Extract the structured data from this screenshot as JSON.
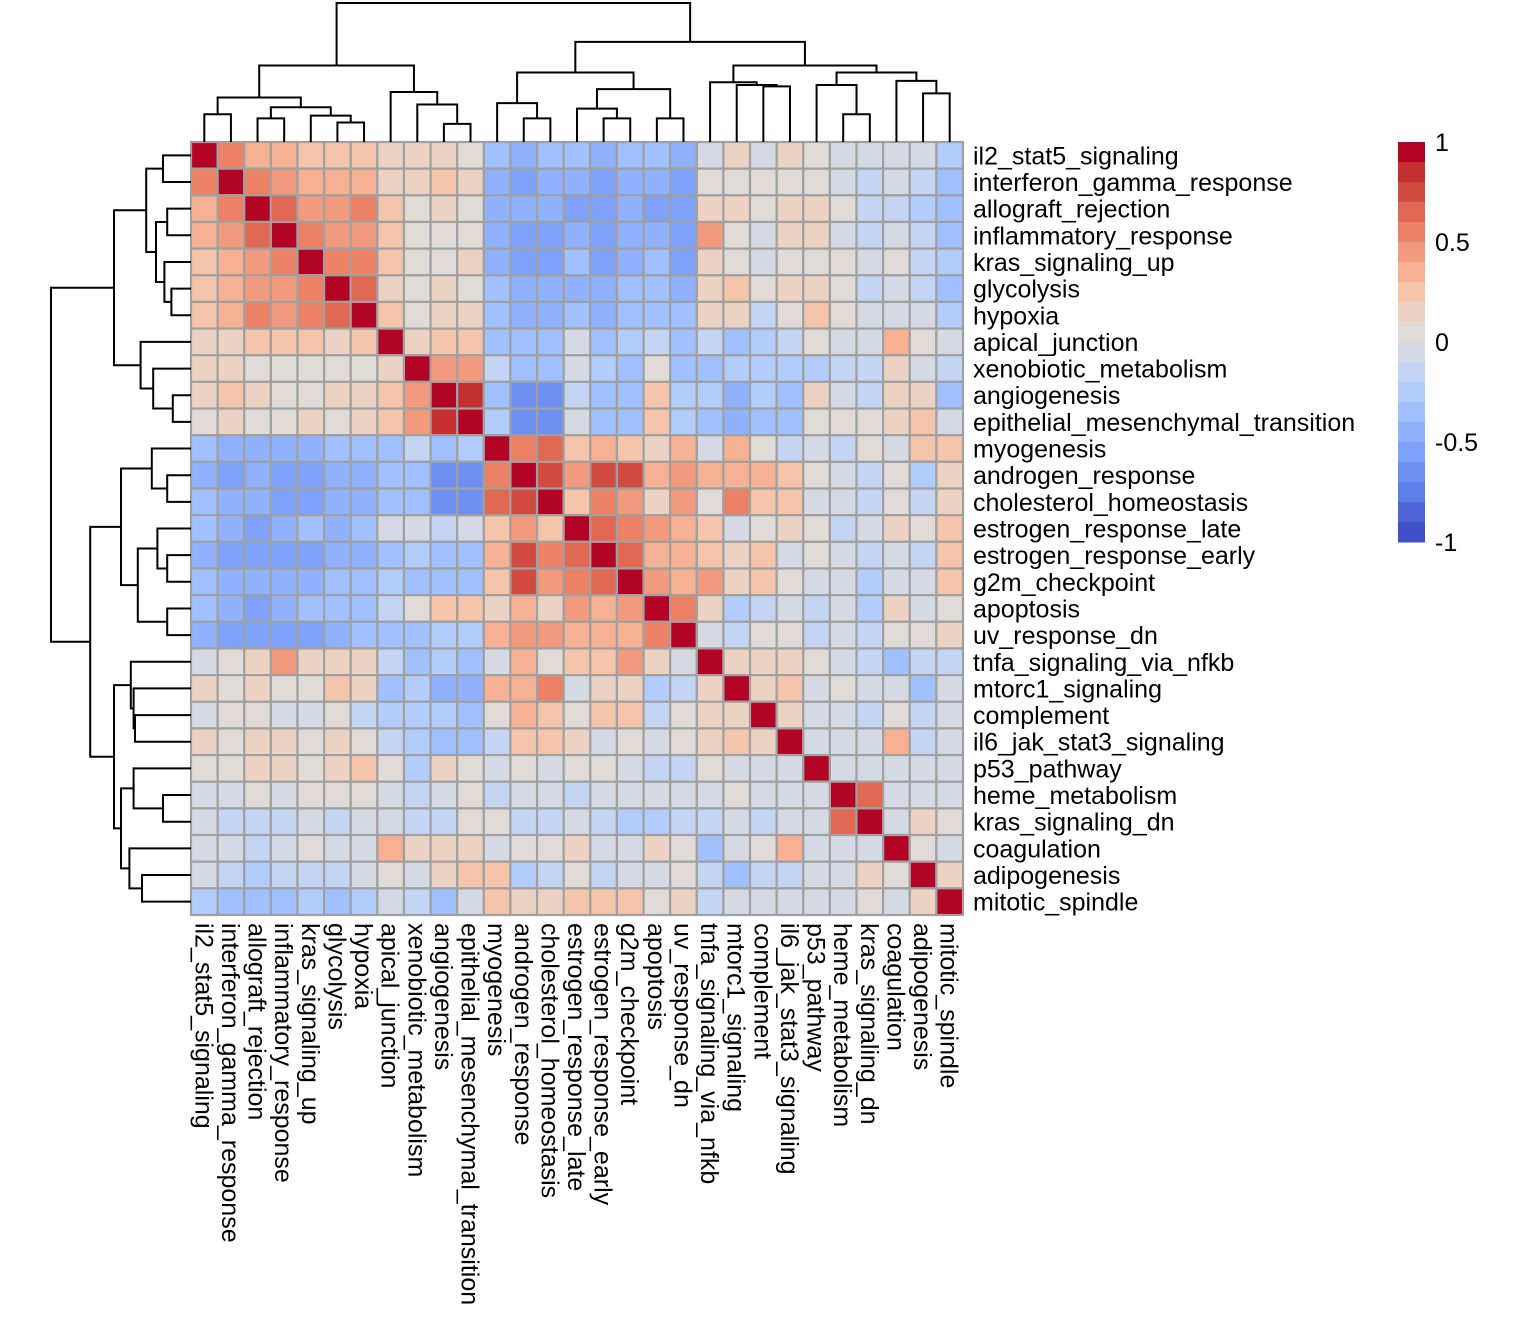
{
  "chart_data": {
    "type": "heatmap",
    "title": "",
    "labels": [
      "il2_stat5_signaling",
      "interferon_gamma_response",
      "allograft_rejection",
      "inflammatory_response",
      "kras_signaling_up",
      "glycolysis",
      "hypoxia",
      "apical_junction",
      "xenobiotic_metabolism",
      "angiogenesis",
      "epithelial_mesenchymal_transition",
      "myogenesis",
      "androgen_response",
      "cholesterol_homeostasis",
      "estrogen_response_late",
      "estrogen_response_early",
      "g2m_checkpoint",
      "apoptosis",
      "uv_response_dn",
      "tnfa_signaling_via_nfkb",
      "mtorc1_signaling",
      "complement",
      "il6_jak_stat3_signaling",
      "p53_pathway",
      "heme_metabolism",
      "kras_signaling_dn",
      "coagulation",
      "adipogenesis",
      "mitotic_spindle"
    ],
    "matrix": [
      [
        1,
        0.55,
        0.35,
        0.35,
        0.25,
        0.25,
        0.25,
        0.12,
        0.12,
        0.15,
        0.05,
        -0.3,
        -0.45,
        -0.35,
        -0.35,
        -0.45,
        -0.35,
        -0.35,
        -0.45,
        0,
        0.15,
        0,
        0.12,
        0.05,
        0,
        0,
        0,
        -0.05,
        -0.2
      ],
      [
        0.55,
        1,
        0.55,
        0.45,
        0.35,
        0.35,
        0.35,
        0.12,
        0.12,
        0.25,
        0.12,
        -0.4,
        -0.5,
        -0.45,
        -0.45,
        -0.5,
        -0.4,
        -0.45,
        -0.55,
        0.05,
        0.1,
        0.05,
        0.1,
        0.05,
        0,
        -0.15,
        0,
        -0.15,
        -0.3
      ],
      [
        0.35,
        0.55,
        1,
        0.65,
        0.45,
        0.45,
        0.55,
        0.25,
        0.05,
        0.12,
        0.05,
        -0.4,
        -0.45,
        -0.45,
        -0.5,
        -0.5,
        -0.45,
        -0.5,
        -0.5,
        0.12,
        0.15,
        0.05,
        0.15,
        0.15,
        0.05,
        -0.15,
        -0.1,
        -0.2,
        -0.3
      ],
      [
        0.35,
        0.45,
        0.65,
        1,
        0.55,
        0.45,
        0.45,
        0.25,
        0.1,
        0.1,
        0.05,
        -0.4,
        -0.5,
        -0.5,
        -0.4,
        -0.5,
        -0.4,
        -0.4,
        -0.5,
        0.45,
        0.05,
        0,
        0.15,
        0.15,
        0,
        -0.15,
        0,
        -0.15,
        -0.3
      ],
      [
        0.25,
        0.35,
        0.45,
        0.55,
        1,
        0.55,
        0.55,
        0.25,
        0.05,
        0.1,
        0.12,
        -0.4,
        -0.5,
        -0.5,
        -0.3,
        -0.5,
        -0.4,
        -0.35,
        -0.5,
        0.12,
        0.05,
        0,
        0.05,
        0.05,
        0.1,
        0,
        0.05,
        -0.1,
        -0.25
      ],
      [
        0.25,
        0.35,
        0.45,
        0.45,
        0.55,
        1,
        0.65,
        0.12,
        0.05,
        0.12,
        0.05,
        -0.35,
        -0.4,
        -0.4,
        -0.4,
        -0.4,
        -0.3,
        -0.35,
        -0.45,
        0.12,
        0.3,
        0.05,
        0.12,
        0.15,
        0.05,
        -0.15,
        0,
        -0.15,
        -0.3
      ],
      [
        0.25,
        0.35,
        0.55,
        0.45,
        0.55,
        0.65,
        1,
        0.25,
        0.05,
        0.12,
        0.12,
        -0.3,
        -0.4,
        -0.4,
        -0.35,
        -0.4,
        -0.3,
        -0.3,
        -0.35,
        0.12,
        0.15,
        -0.1,
        0.05,
        0.25,
        0.05,
        0,
        0,
        0,
        -0.2
      ],
      [
        0.12,
        0.12,
        0.25,
        0.25,
        0.25,
        0.12,
        0.25,
        1,
        0.15,
        0.25,
        0.25,
        -0.3,
        -0.35,
        -0.35,
        0,
        -0.35,
        -0.25,
        -0.15,
        -0.3,
        -0.1,
        -0.3,
        -0.2,
        -0.1,
        0.05,
        0,
        0,
        0.35,
        0.05,
        0
      ],
      [
        0.12,
        0.12,
        0.05,
        0.1,
        0.05,
        0.05,
        0.05,
        0.15,
        1,
        0.45,
        0.45,
        -0.15,
        -0.35,
        -0.35,
        0,
        -0.25,
        -0.3,
        0.05,
        -0.3,
        -0.3,
        -0.25,
        -0.2,
        -0.2,
        -0.2,
        -0.1,
        -0.15,
        0.15,
        0,
        -0.15
      ],
      [
        0.15,
        0.25,
        0.12,
        0.1,
        0.1,
        0.12,
        0.12,
        0.25,
        0.45,
        1,
        0.85,
        -0.35,
        -0.6,
        -0.6,
        -0.15,
        -0.35,
        -0.3,
        0.25,
        -0.2,
        -0.25,
        -0.4,
        -0.25,
        -0.3,
        0.15,
        -0.05,
        -0.1,
        0.15,
        0.12,
        -0.3
      ],
      [
        0.05,
        0.12,
        0.05,
        0.05,
        0.12,
        0.05,
        0.12,
        0.25,
        0.45,
        0.85,
        1,
        -0.2,
        -0.6,
        -0.6,
        -0.05,
        -0.35,
        -0.35,
        0.25,
        -0.2,
        -0.3,
        -0.45,
        -0.3,
        -0.3,
        0.05,
        0.05,
        0.05,
        0.12,
        0.3,
        0
      ],
      [
        -0.3,
        -0.4,
        -0.4,
        -0.4,
        -0.4,
        -0.35,
        -0.3,
        -0.3,
        -0.15,
        -0.35,
        -0.2,
        1,
        0.55,
        0.65,
        0.25,
        0.35,
        0.25,
        0.12,
        0.35,
        -0.05,
        0.35,
        0.05,
        -0.1,
        0,
        -0.1,
        0.05,
        0,
        0.3,
        0.3
      ],
      [
        -0.45,
        -0.5,
        -0.45,
        -0.5,
        -0.5,
        -0.4,
        -0.4,
        -0.35,
        -0.35,
        -0.6,
        -0.6,
        0.55,
        1,
        0.75,
        0.45,
        0.75,
        0.75,
        0.35,
        0.45,
        0.35,
        0.35,
        0.35,
        0.25,
        0.05,
        0,
        -0.15,
        0.05,
        -0.2,
        0.15
      ],
      [
        -0.35,
        -0.45,
        -0.45,
        -0.5,
        -0.5,
        -0.4,
        -0.4,
        -0.35,
        -0.35,
        -0.6,
        -0.6,
        0.65,
        0.75,
        1,
        0.25,
        0.55,
        0.45,
        0.15,
        0.45,
        0.05,
        0.55,
        0.25,
        0.3,
        0,
        0,
        -0.15,
        0.05,
        -0.15,
        0.15
      ],
      [
        -0.35,
        -0.45,
        -0.5,
        -0.4,
        -0.3,
        -0.4,
        -0.35,
        0,
        0,
        -0.15,
        -0.05,
        0.25,
        0.45,
        0.25,
        1,
        0.65,
        0.55,
        0.45,
        0.35,
        0.25,
        0,
        0.05,
        0.15,
        0.05,
        -0.1,
        0,
        0.15,
        0.05,
        0.3
      ],
      [
        -0.45,
        -0.5,
        -0.5,
        -0.5,
        -0.5,
        -0.4,
        -0.4,
        -0.35,
        -0.25,
        -0.35,
        -0.35,
        0.35,
        0.75,
        0.55,
        0.65,
        1,
        0.65,
        0.35,
        0.35,
        0.25,
        0.15,
        0.25,
        0,
        0.05,
        0,
        -0.15,
        0,
        -0.1,
        0.3
      ],
      [
        -0.35,
        -0.4,
        -0.45,
        -0.4,
        -0.4,
        -0.3,
        -0.3,
        -0.25,
        -0.3,
        -0.3,
        -0.35,
        0.25,
        0.75,
        0.45,
        0.55,
        0.65,
        1,
        0.45,
        0.35,
        0.45,
        0.15,
        0.25,
        0.05,
        0,
        0,
        -0.25,
        -0.05,
        0,
        0.3
      ],
      [
        -0.35,
        -0.45,
        -0.5,
        -0.4,
        -0.35,
        -0.35,
        -0.3,
        -0.15,
        0.05,
        0.25,
        0.25,
        0.12,
        0.35,
        0.15,
        0.45,
        0.35,
        0.45,
        1,
        0.6,
        0.15,
        -0.2,
        -0.1,
        0,
        -0.1,
        0,
        -0.25,
        0.15,
        -0.05,
        0.05
      ],
      [
        -0.45,
        -0.55,
        -0.5,
        -0.5,
        -0.5,
        -0.45,
        -0.35,
        -0.3,
        -0.3,
        -0.2,
        -0.2,
        0.35,
        0.45,
        0.45,
        0.35,
        0.35,
        0.35,
        0.6,
        1,
        -0.05,
        -0.1,
        0.05,
        0.05,
        -0.1,
        0,
        -0.1,
        0.05,
        0.05,
        0.15
      ],
      [
        0,
        0.05,
        0.12,
        0.45,
        0.12,
        0.12,
        0.12,
        -0.1,
        -0.3,
        -0.25,
        -0.3,
        -0.05,
        0.35,
        0.05,
        0.25,
        0.25,
        0.45,
        0.15,
        -0.05,
        1,
        0.12,
        0.12,
        0.12,
        0.05,
        -0.05,
        -0.1,
        -0.3,
        -0.15,
        -0.1
      ],
      [
        0.15,
        0.1,
        0.15,
        0.05,
        0.05,
        0.3,
        0.15,
        -0.3,
        -0.25,
        -0.4,
        -0.45,
        0.35,
        0.35,
        0.55,
        0,
        0.15,
        0.15,
        -0.2,
        -0.1,
        0.12,
        1,
        0.12,
        0.3,
        -0.05,
        0.05,
        -0.05,
        -0.05,
        -0.3,
        -0.05
      ],
      [
        0,
        0.05,
        0.05,
        0,
        0,
        0.05,
        -0.1,
        -0.2,
        -0.2,
        -0.25,
        -0.3,
        0.05,
        0.35,
        0.25,
        0.05,
        0.25,
        0.25,
        -0.1,
        0.05,
        0.12,
        0.12,
        1,
        0.12,
        -0.05,
        -0.05,
        -0.15,
        0.05,
        -0.15,
        -0.05
      ],
      [
        0.12,
        0.1,
        0.15,
        0.15,
        0.05,
        0.12,
        0.05,
        -0.1,
        -0.2,
        -0.3,
        -0.3,
        -0.1,
        0.25,
        0.3,
        0.15,
        0,
        0.05,
        0,
        0.05,
        0.12,
        0.3,
        0.12,
        1,
        -0.05,
        -0.05,
        -0.05,
        0.35,
        -0.15,
        -0.05
      ],
      [
        0.05,
        0.05,
        0.15,
        0.15,
        0.05,
        0.15,
        0.25,
        0.05,
        -0.2,
        0.15,
        0.05,
        0,
        0.05,
        0,
        0.05,
        0.05,
        0,
        -0.1,
        -0.1,
        0.05,
        -0.05,
        -0.05,
        -0.05,
        1,
        -0.05,
        -0.05,
        -0.05,
        -0.05,
        -0.05
      ],
      [
        0,
        0,
        0.05,
        0,
        0.1,
        0.05,
        0.05,
        0,
        -0.1,
        -0.05,
        0.05,
        -0.1,
        0,
        0,
        -0.1,
        0,
        0,
        0,
        0,
        -0.05,
        0.05,
        -0.05,
        -0.05,
        -0.05,
        1,
        0.65,
        -0.05,
        -0.05,
        -0.05
      ],
      [
        0,
        -0.15,
        -0.15,
        -0.15,
        0,
        -0.15,
        0,
        0,
        -0.15,
        -0.1,
        0.05,
        0.05,
        -0.15,
        -0.15,
        0,
        -0.15,
        -0.25,
        -0.25,
        -0.1,
        -0.1,
        -0.05,
        -0.15,
        -0.05,
        -0.05,
        0.65,
        1,
        -0.05,
        0.12,
        0.05
      ],
      [
        0,
        0,
        -0.1,
        0,
        0.05,
        0,
        0,
        0.35,
        0.15,
        0.15,
        0.12,
        0,
        0.05,
        0.05,
        0.15,
        0,
        -0.05,
        0.15,
        0.05,
        -0.3,
        -0.05,
        0.05,
        0.35,
        -0.05,
        -0.05,
        -0.05,
        1,
        0.05,
        -0.05
      ],
      [
        -0.05,
        -0.15,
        -0.2,
        -0.15,
        -0.1,
        -0.15,
        0,
        0.05,
        0,
        0.12,
        0.3,
        0.3,
        -0.2,
        -0.15,
        0.05,
        -0.1,
        0,
        -0.05,
        0.05,
        -0.15,
        -0.3,
        -0.15,
        -0.15,
        -0.05,
        -0.05,
        0.12,
        0.05,
        1,
        0.15
      ],
      [
        -0.2,
        -0.3,
        -0.3,
        -0.3,
        -0.25,
        -0.3,
        -0.2,
        0,
        -0.15,
        -0.3,
        0,
        0.3,
        0.15,
        0.15,
        0.3,
        0.3,
        0.3,
        0.05,
        0.15,
        -0.1,
        -0.05,
        -0.05,
        -0.05,
        -0.05,
        -0.05,
        0.05,
        -0.05,
        0.15,
        1
      ]
    ],
    "dendrogram": [
      [
        0,
        1,
        0.2
      ],
      [
        2,
        3,
        0.17
      ],
      [
        5,
        6,
        0.14
      ],
      [
        4,
        "n2",
        0.19
      ],
      [
        "n1",
        "n3",
        0.25
      ],
      [
        "n0",
        "n4",
        0.32
      ],
      [
        9,
        10,
        0.13
      ],
      [
        8,
        "n6",
        0.27
      ],
      [
        7,
        "n7",
        0.36
      ],
      [
        "n5",
        "n8",
        0.55
      ],
      [
        12,
        13,
        0.17
      ],
      [
        11,
        "n10",
        0.28
      ],
      [
        15,
        16,
        0.17
      ],
      [
        14,
        "n12",
        0.24
      ],
      [
        17,
        18,
        0.17
      ],
      [
        "n13",
        "n14",
        0.38
      ],
      [
        "n11",
        "n15",
        0.5
      ],
      [
        21,
        22,
        0.4
      ],
      [
        20,
        "n17",
        0.41
      ],
      [
        19,
        "n18",
        0.43
      ],
      [
        24,
        25,
        0.2
      ],
      [
        23,
        "n20",
        0.41
      ],
      [
        27,
        28,
        0.35
      ],
      [
        26,
        "n22",
        0.44
      ],
      [
        "n21",
        "n23",
        0.5
      ],
      [
        "n19",
        "n24",
        0.55
      ],
      [
        "n16",
        "n25",
        0.72
      ],
      [
        "n9",
        "n26",
        1.0
      ]
    ],
    "color_scale": {
      "min": -1,
      "max": 1,
      "ticks": [
        1,
        0.5,
        0,
        -0.5,
        -1
      ],
      "colors": [
        "#b40426",
        "#c3302f",
        "#d24b40",
        "#e16852",
        "#ec8165",
        "#f29a7d",
        "#f6b093",
        "#f4c4ab",
        "#ecd2c3",
        "#e0dbd6",
        "#d4d9e3",
        "#c4d5f3",
        "#b2ccfb",
        "#a1c0ff",
        "#8fb1fe",
        "#7ea1fa",
        "#6e90f2",
        "#5f7fe8",
        "#5064d9",
        "#3f4fc7"
      ]
    },
    "legend": "right"
  }
}
